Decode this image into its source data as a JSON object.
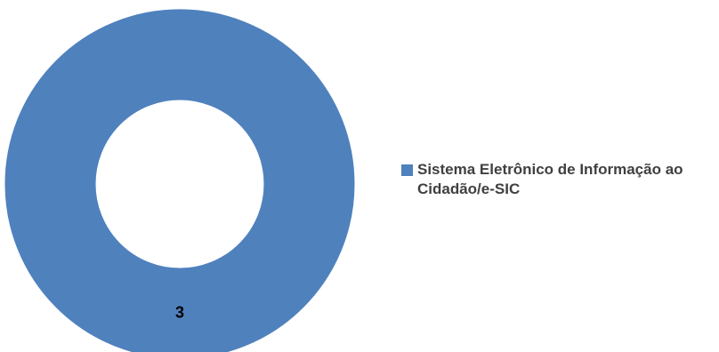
{
  "chart_data": {
    "type": "pie",
    "variant": "donut",
    "categories": [
      "Sistema Eletrônico de Informação ao Cidadão/e-SIC"
    ],
    "values": [
      3
    ],
    "data_labels": [
      "3"
    ],
    "colors": [
      "#4F81BD"
    ],
    "legend": {
      "placement": "right",
      "entries": [
        "Sistema Eletrônico de Informação ao Cidadão/e-SIC"
      ]
    }
  }
}
